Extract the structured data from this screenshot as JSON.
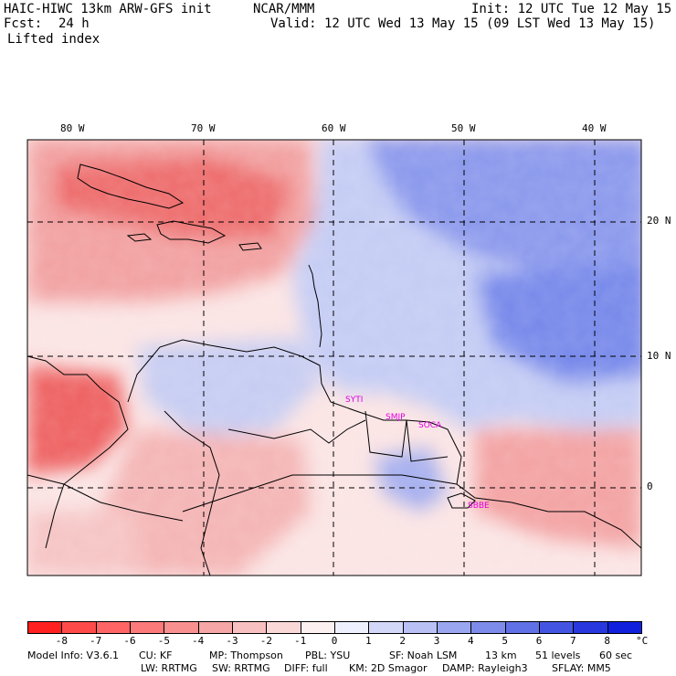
{
  "header": {
    "model_title": "HAIC-HIWC 13km ARW-GFS init",
    "org": "NCAR/MMM",
    "init": "Init: 12 UTC Tue 12 May 15",
    "fcst_label": "Fcst:",
    "fcst_value": "24 h",
    "valid": "Valid: 12 UTC Wed 13 May 15 (09 LST Wed 13 May 15)",
    "field": "Lifted index"
  },
  "map": {
    "lon_labels": [
      "80 W",
      "70 W",
      "60 W",
      "50 W",
      "40 W"
    ],
    "lat_labels": [
      "20 N",
      "10 N",
      "0"
    ],
    "place_labels": [
      "SBBE",
      "SOCA",
      "SMJP",
      "SYTI"
    ],
    "colors": {
      "neg_strong": "#ee4848",
      "neg_mid": "#f59090",
      "neg_light": "#fac8c8",
      "pos_light": "#d2d6f4",
      "pos_mid": "#9aa6ec",
      "pos_strong": "#5a6ee6"
    }
  },
  "colorbar": {
    "ticks": [
      "-8",
      "-7",
      "-6",
      "-5",
      "-4",
      "-3",
      "-2",
      "-1",
      "0",
      "1",
      "2",
      "3",
      "4",
      "5",
      "6",
      "7",
      "8"
    ],
    "unit": "°C",
    "colors": [
      "#ff2020",
      "#ff4a4a",
      "#ff6565",
      "#fd7a7a",
      "#f99090",
      "#f6a6a6",
      "#f8c0c0",
      "#fbd8d8",
      "#fdf0f0",
      "#eef0fd",
      "#d4d8f8",
      "#b8c0f4",
      "#9aa6ef",
      "#7d8cea",
      "#6070e6",
      "#4454e2",
      "#2838de",
      "#1020dc"
    ]
  },
  "footer": {
    "line1": [
      "Model Info: V3.6.1",
      "CU: KF",
      "MP: Thompson",
      "PBL: YSU",
      "SF: Noah LSM",
      "13 km",
      "51 levels",
      "60 sec"
    ],
    "line2": [
      "LW: RRTMG",
      "SW: RRTMG",
      "DIFF: full",
      "KM: 2D Smagor",
      "DAMP: Rayleigh3",
      "SFLAY: MM5"
    ]
  }
}
